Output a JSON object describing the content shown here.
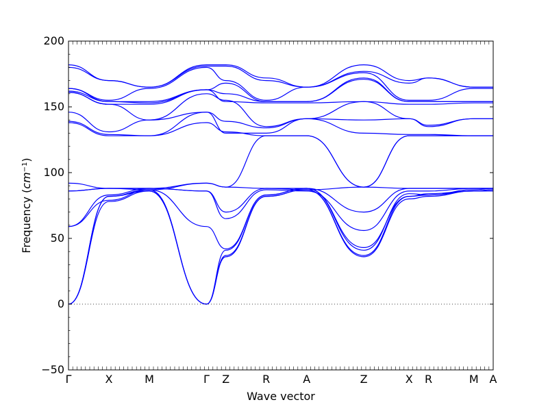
{
  "chart_data": {
    "type": "line",
    "xlabel": "Wave vector",
    "ylabel": "Frequency",
    "ylabel_unit": "cm",
    "ylabel_exp": "−1",
    "ylim": [
      -50,
      200
    ],
    "yticks": [
      -50,
      0,
      50,
      100,
      150,
      200
    ],
    "zero_line": "dotted",
    "grid": false,
    "line_color": "#0000ff",
    "high_symmetry_path": [
      {
        "label": "Γ",
        "x": 0.0
      },
      {
        "label": "X",
        "x": 1.0
      },
      {
        "label": "M",
        "x": 2.0
      },
      {
        "label": "Γ",
        "x": 3.414
      },
      {
        "label": "Z",
        "x": 3.893
      },
      {
        "label": "R",
        "x": 4.893
      },
      {
        "label": "A",
        "x": 5.893
      },
      {
        "label": "Z",
        "x": 7.307
      },
      {
        "label": "X",
        "x": 8.429
      },
      {
        "label": "R",
        "x": 8.908
      },
      {
        "label": "M",
        "x": 10.03
      },
      {
        "label": "A",
        "x": 10.509
      }
    ],
    "series": [
      {
        "values": [
          0,
          78,
          86,
          0,
          36,
          82,
          87,
          36,
          80,
          82,
          86,
          86
        ]
      },
      {
        "values": [
          0,
          82,
          86,
          0,
          37,
          82,
          87,
          37,
          82,
          83,
          86,
          87
        ]
      },
      {
        "values": [
          0,
          82,
          87,
          0,
          41,
          83,
          88,
          41,
          84,
          83,
          87,
          88
        ]
      },
      {
        "values": [
          59,
          79,
          87,
          59,
          42,
          83,
          88,
          43,
          82,
          84,
          86,
          87
        ]
      },
      {
        "values": [
          59,
          83,
          88,
          86,
          65,
          87,
          86,
          56,
          86,
          86,
          88,
          88
        ]
      },
      {
        "values": [
          86,
          88,
          88,
          86,
          70,
          88,
          88,
          70,
          88,
          88,
          88,
          88
        ]
      },
      {
        "values": [
          86,
          88,
          88,
          92,
          89,
          88,
          87,
          89,
          88,
          88,
          88,
          88
        ]
      },
      {
        "values": [
          92,
          88,
          87,
          92,
          89,
          128,
          128,
          89,
          128,
          128,
          128,
          128
        ]
      },
      {
        "values": [
          138,
          128,
          128,
          138,
          131,
          128,
          128,
          89,
          128,
          128,
          128,
          128
        ]
      },
      {
        "values": [
          139,
          129,
          128,
          146,
          130,
          130,
          141,
          130,
          129,
          129,
          128,
          128
        ]
      },
      {
        "values": [
          146,
          131,
          140,
          146,
          139,
          134,
          141,
          140,
          141,
          135,
          141,
          141
        ]
      },
      {
        "values": [
          161,
          152,
          140,
          160,
          155,
          135,
          141,
          154,
          141,
          136,
          141,
          141
        ]
      },
      {
        "values": [
          161,
          152,
          152,
          163,
          154,
          153,
          153,
          154,
          152,
          152,
          153,
          153
        ]
      },
      {
        "values": [
          162,
          154,
          153,
          163,
          160,
          154,
          154,
          171,
          154,
          154,
          154,
          154
        ]
      },
      {
        "values": [
          164,
          154,
          154,
          163,
          168,
          154,
          154,
          172,
          154,
          154,
          154,
          154
        ]
      },
      {
        "values": [
          164,
          155,
          164,
          180,
          170,
          155,
          165,
          176,
          155,
          155,
          164,
          164
        ]
      },
      {
        "values": [
          180,
          170,
          165,
          181,
          181,
          170,
          165,
          177,
          168,
          172,
          165,
          165
        ]
      },
      {
        "values": [
          182,
          170,
          165,
          182,
          182,
          172,
          165,
          182,
          170,
          172,
          165,
          165
        ]
      }
    ]
  }
}
